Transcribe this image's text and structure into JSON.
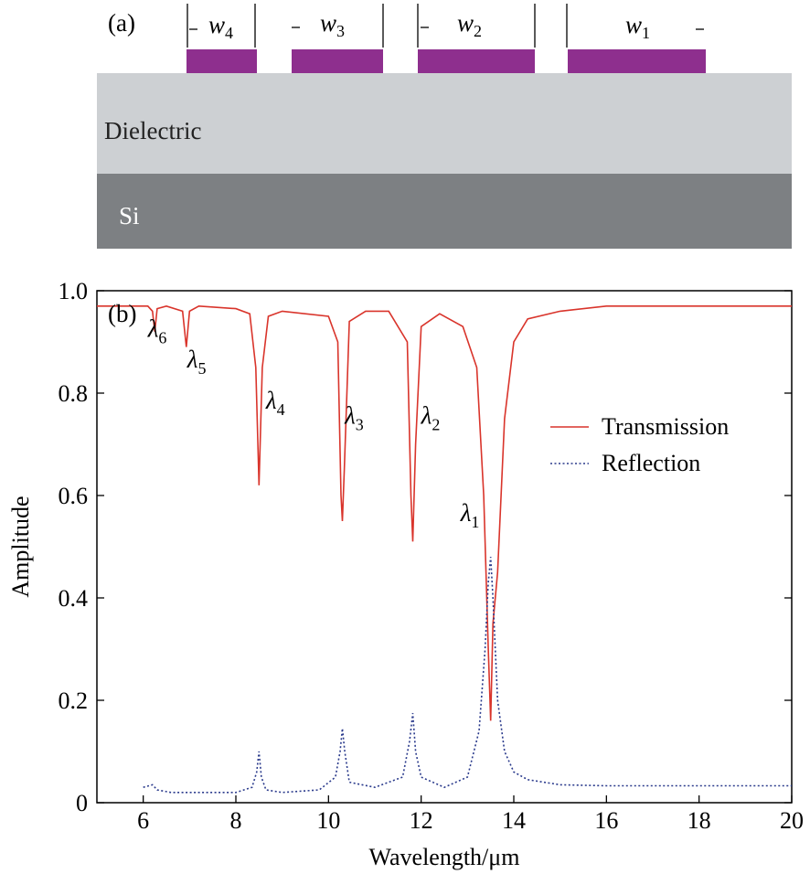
{
  "panel_a": {
    "label": "(a)",
    "layers": [
      {
        "name": "Dielectric",
        "color": "#cdd0d3"
      },
      {
        "name": "Si",
        "color": "#7d8083"
      }
    ],
    "strip_color": "#8e2f8e",
    "widths": [
      {
        "sym": "w",
        "sub": "4"
      },
      {
        "sym": "w",
        "sub": "3"
      },
      {
        "sym": "w",
        "sub": "2"
      },
      {
        "sym": "w",
        "sub": "1"
      }
    ]
  },
  "chart_data": {
    "type": "line",
    "panel_label": "(b)",
    "xlabel": "Wavelength/μm",
    "ylabel": "Amplitude",
    "xlim": [
      5,
      20
    ],
    "ylim": [
      0,
      1.0
    ],
    "xticks": [
      6,
      8,
      10,
      12,
      14,
      16,
      18,
      20
    ],
    "yticks": [
      0,
      0.2,
      0.4,
      0.6,
      0.8,
      1.0
    ],
    "xtick_labels": [
      "6",
      "8",
      "10",
      "12",
      "14",
      "16",
      "18",
      "20"
    ],
    "ytick_labels": [
      "0",
      "0.2",
      "0.4",
      "0.6",
      "0.8",
      "1.0"
    ],
    "legend_position": "center-right",
    "series": [
      {
        "name": "Transmission",
        "color": "#d9342b",
        "style": "solid",
        "x": [
          5.0,
          6.1,
          6.2,
          6.25,
          6.3,
          6.5,
          6.85,
          6.93,
          7.0,
          7.2,
          8.0,
          8.3,
          8.43,
          8.5,
          8.57,
          8.7,
          9.0,
          10.0,
          10.2,
          10.27,
          10.3,
          10.34,
          10.45,
          10.8,
          11.3,
          11.7,
          11.78,
          11.82,
          11.88,
          12.0,
          12.4,
          12.9,
          13.2,
          13.35,
          13.45,
          13.5,
          13.55,
          13.65,
          13.8,
          14.0,
          14.3,
          15.0,
          16.0,
          20.0
        ],
        "y": [
          0.97,
          0.97,
          0.96,
          0.92,
          0.965,
          0.97,
          0.96,
          0.89,
          0.96,
          0.97,
          0.965,
          0.955,
          0.85,
          0.62,
          0.85,
          0.95,
          0.96,
          0.95,
          0.9,
          0.6,
          0.55,
          0.65,
          0.94,
          0.96,
          0.96,
          0.9,
          0.6,
          0.51,
          0.7,
          0.93,
          0.955,
          0.93,
          0.85,
          0.6,
          0.3,
          0.16,
          0.35,
          0.45,
          0.75,
          0.9,
          0.945,
          0.96,
          0.97,
          0.97
        ]
      },
      {
        "name": "Reflection",
        "color": "#2a3a8c",
        "style": "dotted",
        "x": [
          6.0,
          6.2,
          6.3,
          6.6,
          7.0,
          8.0,
          8.35,
          8.45,
          8.5,
          8.55,
          8.65,
          9.0,
          9.8,
          10.15,
          10.25,
          10.3,
          10.35,
          10.45,
          11.0,
          11.6,
          11.75,
          11.82,
          11.88,
          12.0,
          12.5,
          13.0,
          13.25,
          13.38,
          13.45,
          13.5,
          13.55,
          13.65,
          13.8,
          14.0,
          14.3,
          15.0,
          16.0,
          20.0
        ],
        "y": [
          0.03,
          0.035,
          0.025,
          0.02,
          0.02,
          0.02,
          0.03,
          0.06,
          0.1,
          0.05,
          0.025,
          0.02,
          0.025,
          0.05,
          0.1,
          0.145,
          0.1,
          0.04,
          0.03,
          0.05,
          0.12,
          0.175,
          0.1,
          0.05,
          0.03,
          0.05,
          0.14,
          0.3,
          0.43,
          0.48,
          0.4,
          0.2,
          0.1,
          0.06,
          0.045,
          0.035,
          0.033,
          0.033
        ]
      }
    ],
    "annotations": [
      {
        "sym": "λ",
        "sub": "6",
        "x": 6.1,
        "y": 0.91
      },
      {
        "sym": "λ",
        "sub": "5",
        "x": 6.95,
        "y": 0.85
      },
      {
        "sym": "λ",
        "sub": "4",
        "x": 8.65,
        "y": 0.77
      },
      {
        "sym": "λ",
        "sub": "3",
        "x": 10.35,
        "y": 0.74
      },
      {
        "sym": "λ",
        "sub": "2",
        "x": 12.0,
        "y": 0.74
      },
      {
        "sym": "λ",
        "sub": "1",
        "x": 12.85,
        "y": 0.55
      }
    ]
  }
}
